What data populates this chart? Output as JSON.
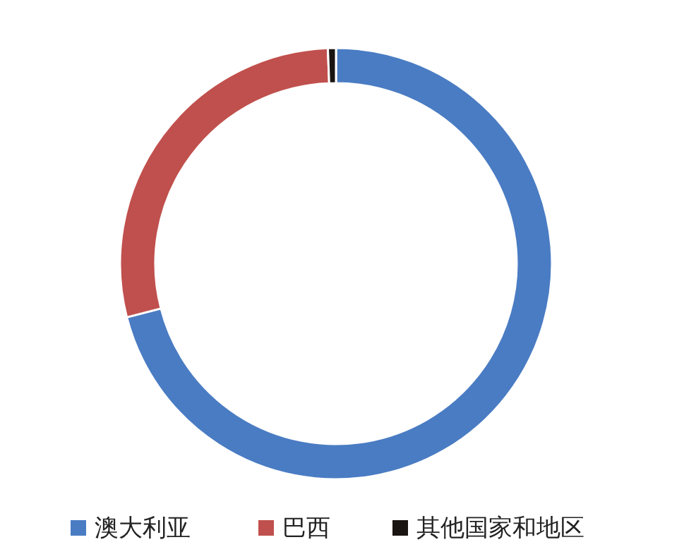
{
  "chart_data": {
    "type": "donut",
    "categories": [
      "澳大利亚",
      "巴西",
      "其他国家和地区"
    ],
    "values": [
      71,
      28.4,
      0.6
    ],
    "colors": [
      "#4a7cc3",
      "#c0504d",
      "#1a1412"
    ],
    "legend": "bottom"
  }
}
